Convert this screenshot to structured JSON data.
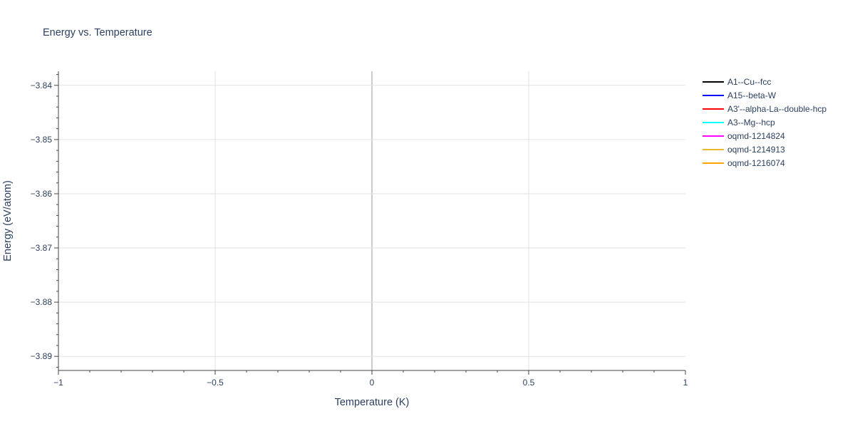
{
  "chart_data": {
    "type": "line",
    "title": "Energy vs. Temperature",
    "xlabel": "Temperature (K)",
    "ylabel": "Energy (eV/atom)",
    "xlim": [
      -1,
      1
    ],
    "ylim": [
      -3.8926,
      -3.8374
    ],
    "x_ticks": [
      -1,
      -0.5,
      0,
      0.5,
      1
    ],
    "x_tick_labels": [
      "−1",
      "−0.5",
      "0",
      "0.5",
      "1"
    ],
    "y_ticks": [
      -3.84,
      -3.85,
      -3.86,
      -3.87,
      -3.88,
      -3.89
    ],
    "y_tick_labels": [
      "−3.84",
      "−3.85",
      "−3.86",
      "−3.87",
      "−3.88",
      "−3.89"
    ],
    "grid": true,
    "legend_position": "right",
    "series": [
      {
        "name": "A1--Cu--fcc",
        "color": "#000000",
        "x": [],
        "y": []
      },
      {
        "name": "A15--beta-W",
        "color": "#0000ff",
        "x": [],
        "y": []
      },
      {
        "name": "A3'--alpha-La--double-hcp",
        "color": "#ff0000",
        "x": [],
        "y": []
      },
      {
        "name": "A3--Mg--hcp",
        "color": "#00ffff",
        "x": [],
        "y": []
      },
      {
        "name": "oqmd-1214824",
        "color": "#ff00ff",
        "x": [],
        "y": []
      },
      {
        "name": "oqmd-1214913",
        "color": "#e8b830",
        "x": [],
        "y": []
      },
      {
        "name": "oqmd-1216074",
        "color": "#ffa500",
        "x": [],
        "y": []
      }
    ]
  }
}
